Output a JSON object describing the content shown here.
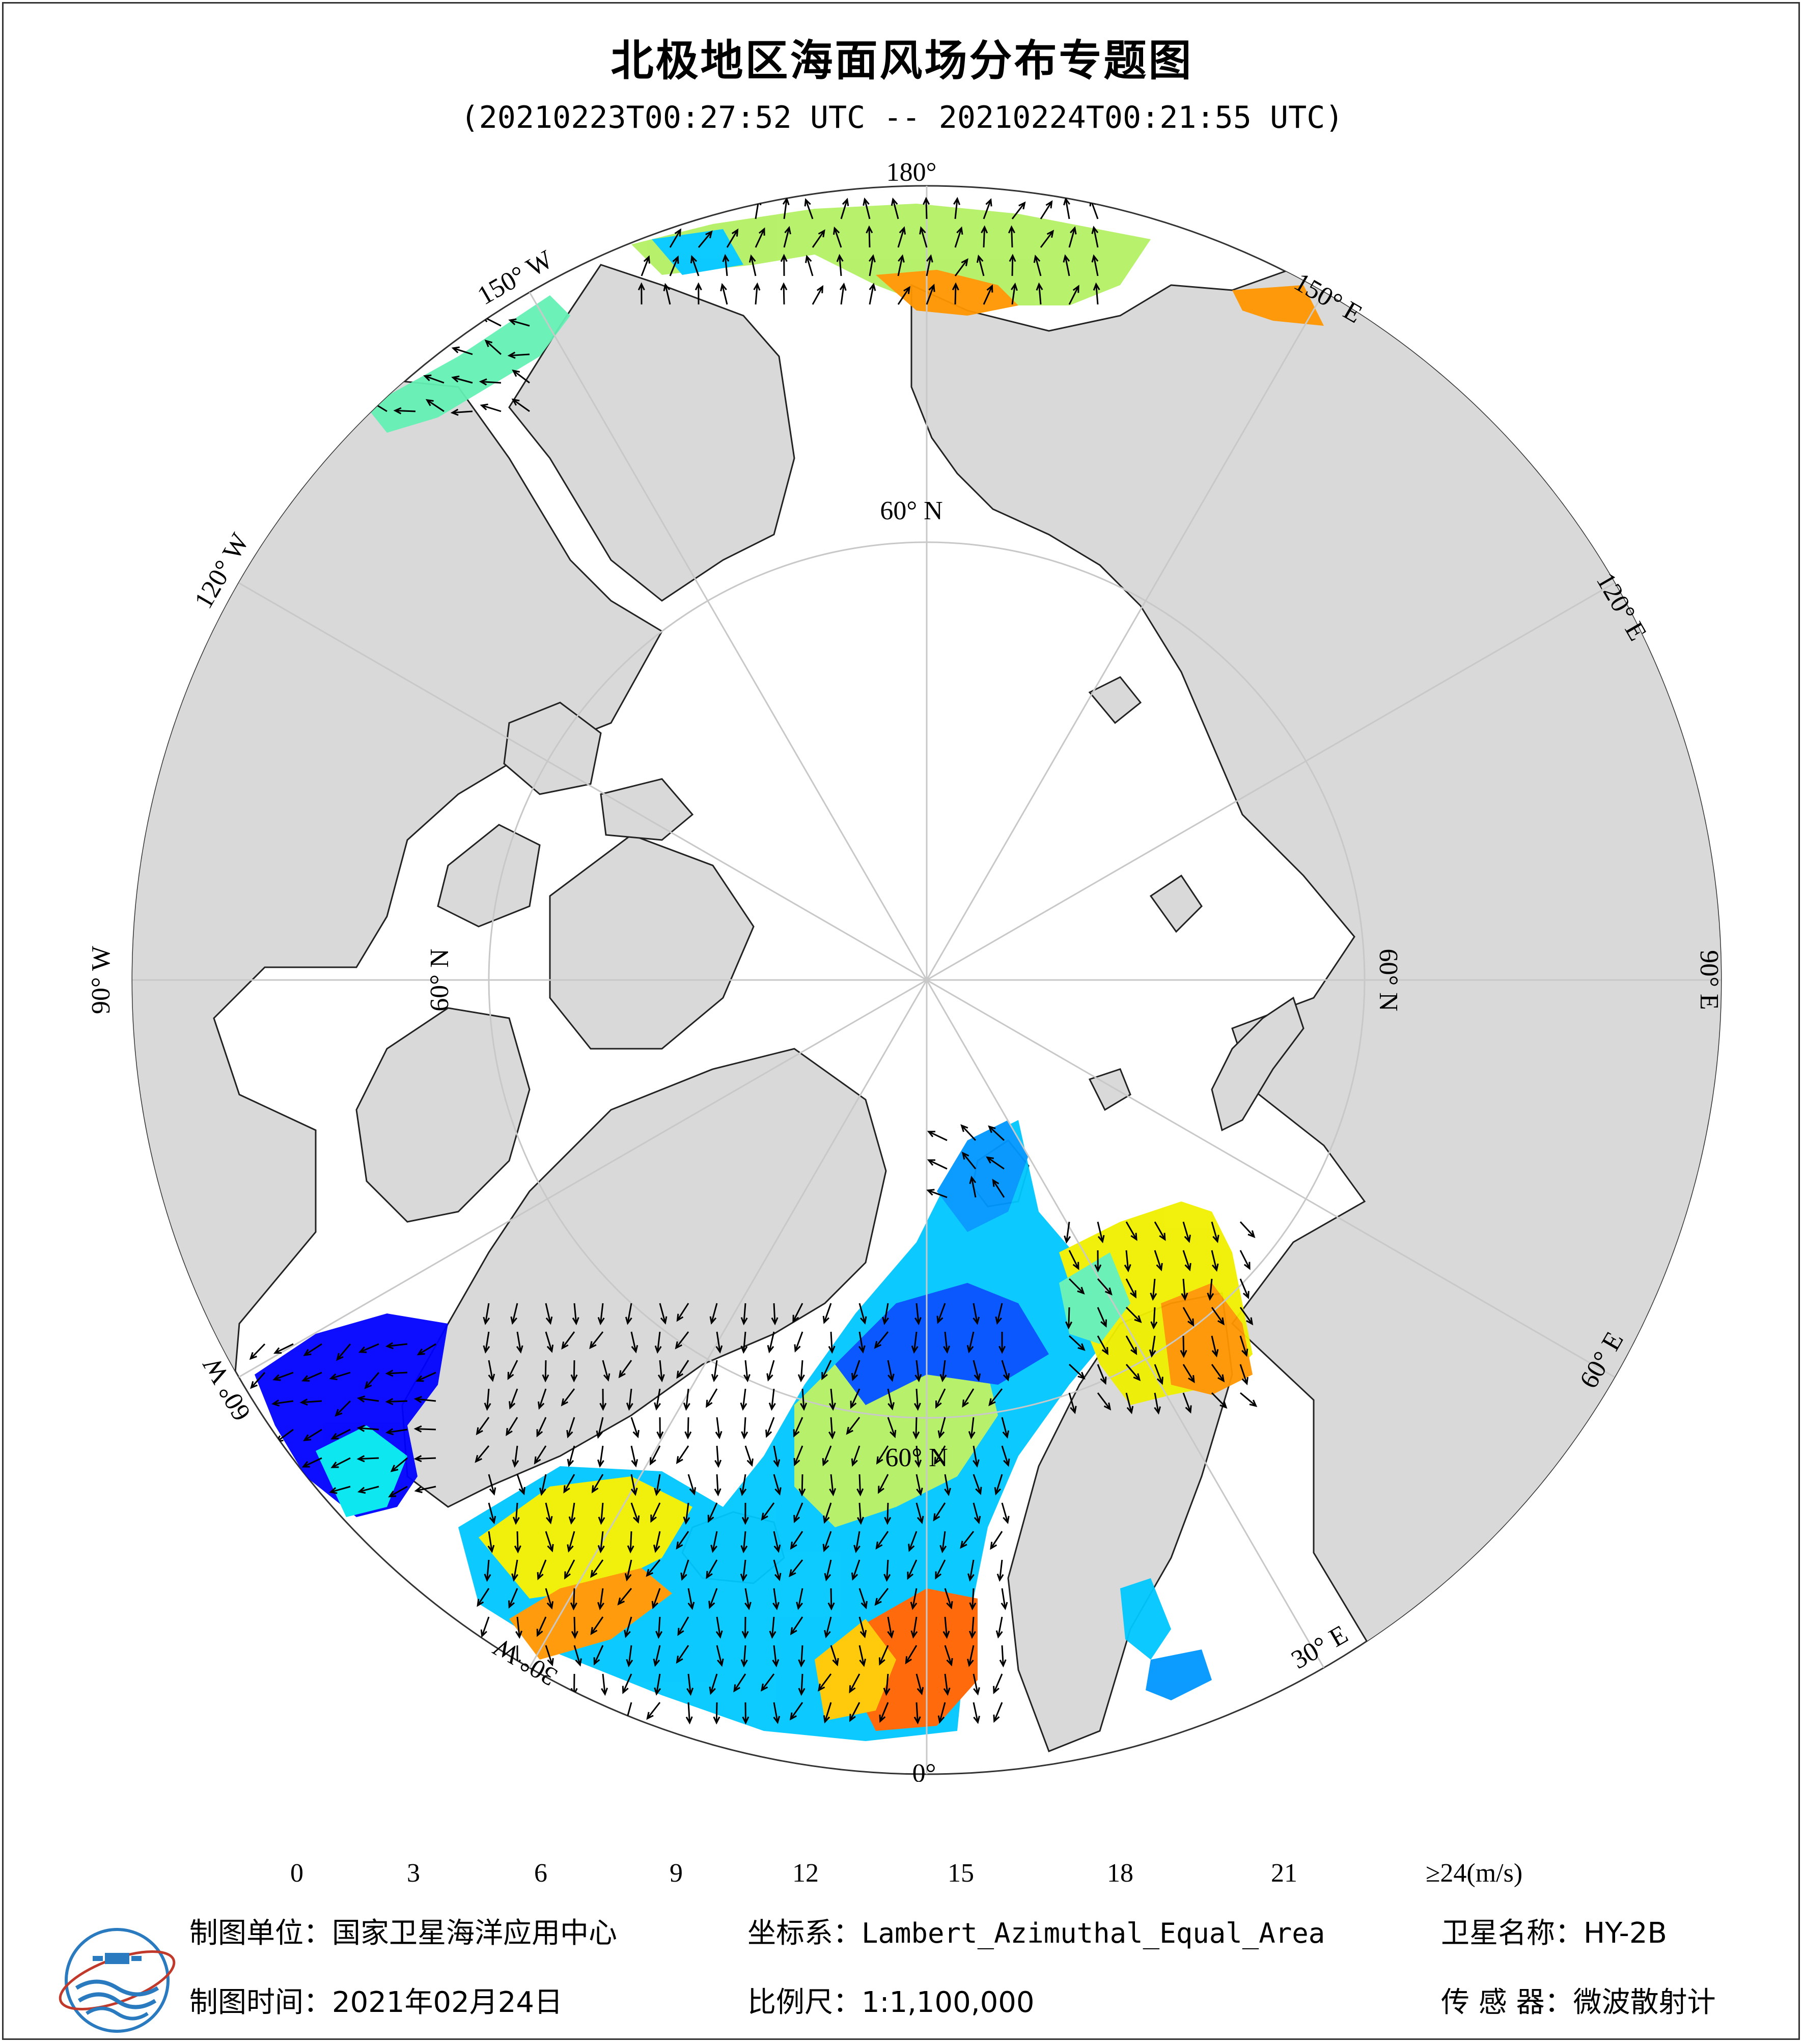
{
  "title": "北极地区海面风场分布专题图",
  "subtitle": "(20210223T00:27:52 UTC -- 20210224T00:21:55 UTC)",
  "map": {
    "projection": "Lambert_Azimuthal_Equal_Area",
    "center": "North Pole",
    "land_color": "#d9d9d9",
    "ocean_color": "#ffffff",
    "graticule_color": "#c8c8c8",
    "longitude_labels": [
      "180°",
      "150° E",
      "120° E",
      "90° E",
      "60° E",
      "30° E",
      "0°",
      "30° W",
      "60° W",
      "90° W",
      "120° W",
      "150° W"
    ],
    "latitude_labels": [
      "60° N",
      "60° N",
      "60° N",
      "60° N"
    ]
  },
  "colorbar": {
    "unit": "(m/s)",
    "ticks": [
      "0",
      "3",
      "6",
      "9",
      "12",
      "15",
      "18",
      "21",
      "≥24"
    ],
    "range": [
      0,
      24
    ],
    "under_color": "#ffffff",
    "over_color": "#7a0000",
    "colors": [
      "#ffffff",
      "#dcdcff",
      "#b4b4ff",
      "#8c8cf5",
      "#5050f0",
      "#0000ff",
      "#0050ff",
      "#0096ff",
      "#00c8ff",
      "#00e6f0",
      "#64f0b4",
      "#b4f064",
      "#f0f000",
      "#ffc800",
      "#ff9600",
      "#ff6400",
      "#ff2800",
      "#e60000",
      "#b40000",
      "#7a0000"
    ]
  },
  "footer": {
    "org_label": "制图单位：",
    "org_value": "国家卫星海洋应用中心",
    "crs_label": "坐标系：",
    "crs_value": "Lambert_Azimuthal_Equal_Area",
    "sat_label": "卫星名称：",
    "sat_value": "HY-2B",
    "date_label": "制图时间：",
    "date_value": "2021年02月24日",
    "scale_label": "比例尺：",
    "scale_value": "1:1,100,000",
    "sensor_label": "传 感 器：",
    "sensor_value": "微波散射计"
  }
}
